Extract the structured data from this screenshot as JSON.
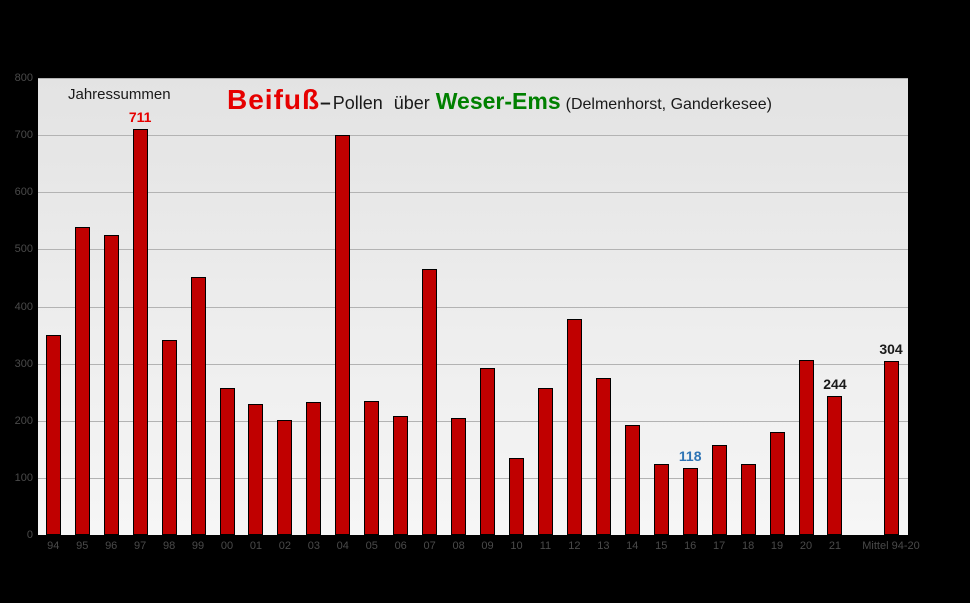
{
  "title": {
    "beifuss": "Beifuß",
    "dash": "–",
    "pollen": "Pollen über",
    "region": "Weser-Ems",
    "stations": "(Delmenhorst, Ganderkesee)",
    "beifuss_color": "#e60000",
    "region_color": "#008000"
  },
  "annotation": "Jahressummen",
  "colors": {
    "background": "#000000",
    "plot_top": "#e3e3e3",
    "plot_bottom": "#f6f6f6",
    "gridline": "#b3b3b3",
    "axis_label": "#4a4a4a",
    "bar_fill": "#c00000",
    "bar_border": "#000000"
  },
  "chart_data": {
    "type": "bar",
    "title": "Beifuß–Pollen über Weser-Ems (Delmenhorst, Ganderkesee)",
    "subtitle": "Jahressummen",
    "categories": [
      "94",
      "95",
      "96",
      "97",
      "98",
      "99",
      "00",
      "01",
      "02",
      "03",
      "04",
      "05",
      "06",
      "07",
      "08",
      "09",
      "10",
      "11",
      "12",
      "13",
      "14",
      "15",
      "16",
      "17",
      "18",
      "19",
      "20",
      "21",
      "Mittel 94-20"
    ],
    "values": [
      350,
      540,
      525,
      711,
      341,
      452,
      258,
      230,
      202,
      233,
      700,
      234,
      208,
      466,
      204,
      293,
      134,
      257,
      379,
      274,
      192,
      124,
      118,
      157,
      125,
      180,
      307,
      244,
      304
    ],
    "xlabel": "",
    "ylabel": "",
    "ylim": [
      0,
      800
    ],
    "yticks": [
      0,
      100,
      200,
      300,
      400,
      500,
      600,
      700,
      800
    ],
    "grid": true,
    "legend": false,
    "value_labels": [
      {
        "index": 3,
        "text": "711",
        "color": "#e60000"
      },
      {
        "index": 22,
        "text": "118",
        "color": "#2e74b5"
      },
      {
        "index": 27,
        "text": "244",
        "color": "#1a1a1a"
      },
      {
        "index": 28,
        "text": "304",
        "color": "#1a1a1a"
      }
    ]
  }
}
